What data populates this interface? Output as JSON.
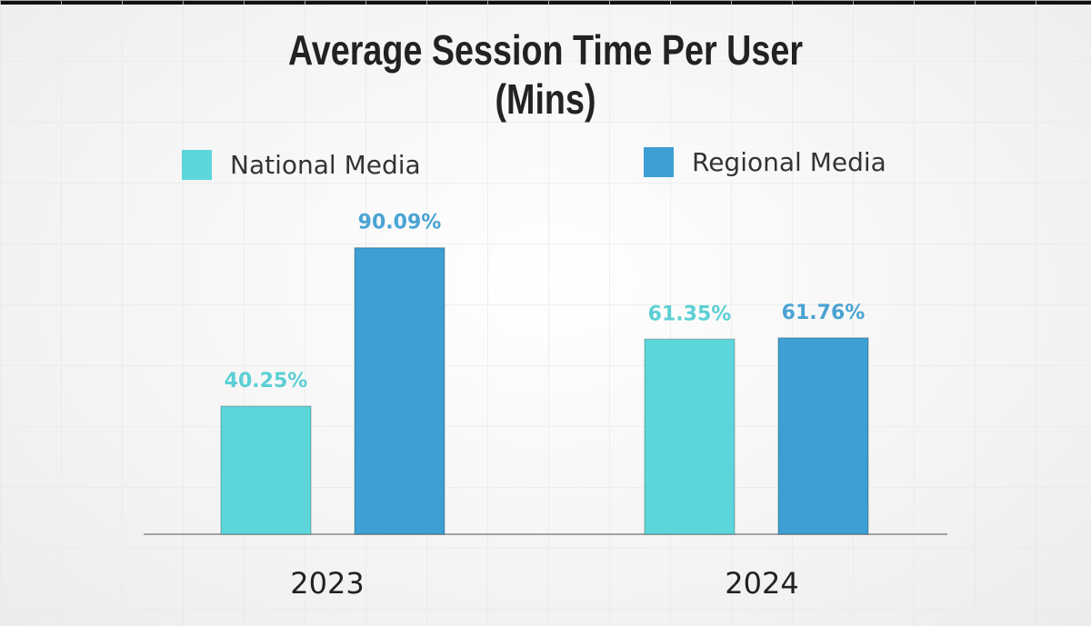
{
  "chart_data": {
    "type": "bar",
    "title": "Average Session Time Per User",
    "subtitle": "(Mins)",
    "categories": [
      "2023",
      "2024"
    ],
    "series": [
      {
        "name": "National Media",
        "values": [
          40.25,
          61.35
        ],
        "labels": [
          "40.25%",
          "61.35%"
        ],
        "color": "#5cd6db",
        "label_color": "#5ccfd4"
      },
      {
        "name": "Regional Media",
        "values": [
          90.09,
          61.76
        ],
        "labels": [
          "90.09%",
          "61.76%"
        ],
        "color": "#3d9fd3",
        "label_color": "#4aa3d3"
      }
    ],
    "ylim": [
      0,
      100
    ],
    "grid": true,
    "legend": "top"
  }
}
